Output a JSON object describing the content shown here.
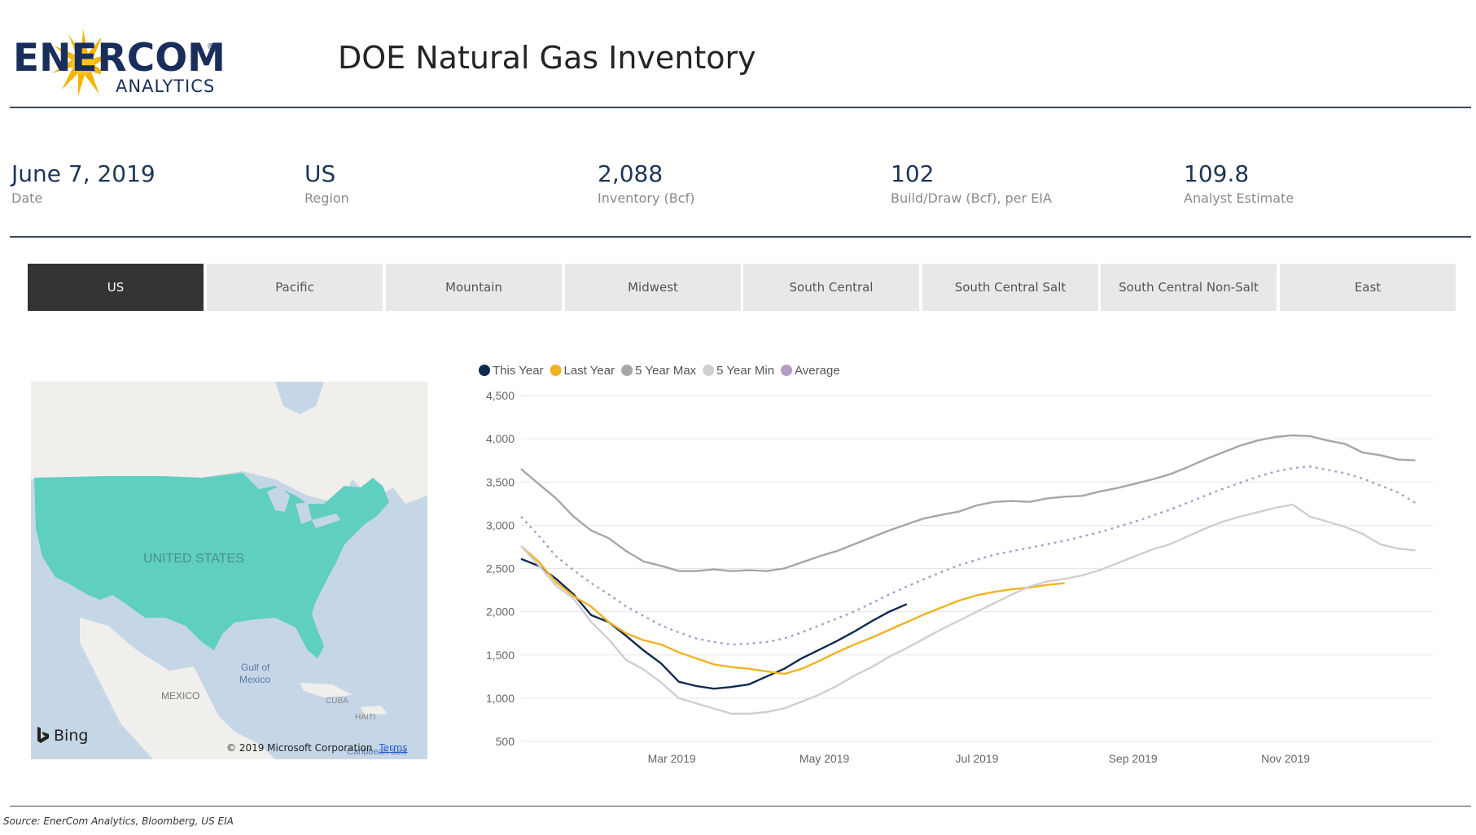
{
  "header": {
    "title": "DOE Natural Gas Inventory",
    "logo_brand": "ENERCOM",
    "logo_sub": "ANALYTICS",
    "logo_reg": "®"
  },
  "kpis": [
    {
      "value": "June 7, 2019",
      "label": "Date"
    },
    {
      "value": "US",
      "label": "Region"
    },
    {
      "value": "2,088",
      "label": "Inventory (Bcf)"
    },
    {
      "value": "102",
      "label": "Build/Draw (Bcf), per EIA"
    },
    {
      "value": "109.8",
      "label": "Analyst Estimate"
    }
  ],
  "tabs": [
    {
      "label": "US",
      "active": true
    },
    {
      "label": "Pacific"
    },
    {
      "label": "Mountain"
    },
    {
      "label": "Midwest"
    },
    {
      "label": "South Central"
    },
    {
      "label": "South Central Salt"
    },
    {
      "label": "South Central Non-Salt"
    },
    {
      "label": "East"
    }
  ],
  "map": {
    "country_label": "UNITED STATES",
    "gulf_label_1": "Gulf of",
    "gulf_label_2": "Mexico",
    "mexico_label": "MEXICO",
    "cuba_label": "CUBA",
    "haiti_label": "HAITI",
    "caribbean_label": "Caribbean Sea",
    "attribution": "Bing",
    "copyright": "© 2019 Microsoft Corporation",
    "terms": "Terms",
    "colors": {
      "highlight": "#5ecfc0",
      "water": "#c5d6e6",
      "land": "#f0efec"
    }
  },
  "chart_data": {
    "type": "line",
    "title": "",
    "xlabel": "",
    "ylabel": "",
    "ylim": [
      500,
      4500
    ],
    "yticks": [
      "4,500",
      "4,000",
      "3,500",
      "3,000",
      "2,500",
      "2,000",
      "1,500",
      "1,000",
      "500"
    ],
    "ytick_values": [
      4500,
      4000,
      3500,
      3000,
      2500,
      2000,
      1500,
      1000,
      500
    ],
    "x_range_weeks": [
      0,
      52
    ],
    "xtick_labels": [
      "Mar 2019",
      "May 2019",
      "Jul 2019",
      "Sep 2019",
      "Nov 2019"
    ],
    "xtick_weeks": [
      8.6,
      17.3,
      26,
      34.9,
      43.6
    ],
    "grid": true,
    "legend_position": "top-left",
    "series": [
      {
        "name": "This Year",
        "color": "#0f2a52",
        "dashed": false,
        "x": [
          0,
          1,
          2,
          3,
          4,
          5,
          6,
          7,
          8,
          9,
          10,
          11,
          12,
          13,
          14,
          15,
          16,
          17,
          18,
          19,
          20,
          21,
          22
        ],
        "values": [
          2610,
          2530,
          2380,
          2200,
          1960,
          1880,
          1720,
          1550,
          1400,
          1190,
          1140,
          1110,
          1130,
          1160,
          1250,
          1340,
          1460,
          1560,
          1660,
          1770,
          1890,
          2000,
          2088
        ]
      },
      {
        "name": "Last Year",
        "color": "#f0b323",
        "dashed": false,
        "x": [
          0,
          1,
          2,
          3,
          4,
          5,
          6,
          7,
          8,
          9,
          10,
          11,
          12,
          13,
          14,
          15,
          16,
          17,
          18,
          19,
          20,
          21,
          22,
          23,
          24,
          25,
          26,
          27,
          28,
          29,
          30,
          31
        ],
        "values": [
          2760,
          2580,
          2340,
          2180,
          2060,
          1880,
          1750,
          1670,
          1620,
          1530,
          1460,
          1390,
          1360,
          1340,
          1310,
          1280,
          1340,
          1430,
          1530,
          1620,
          1700,
          1790,
          1880,
          1970,
          2050,
          2130,
          2190,
          2230,
          2260,
          2280,
          2310,
          2330
        ]
      },
      {
        "name": "5 Year Max",
        "color": "#a6a6a6",
        "dashed": false,
        "x": [
          0,
          1,
          2,
          3,
          4,
          5,
          6,
          7,
          8,
          9,
          10,
          11,
          12,
          13,
          14,
          15,
          16,
          17,
          18,
          19,
          20,
          21,
          22,
          23,
          24,
          25,
          26,
          27,
          28,
          29,
          30,
          31,
          32,
          33,
          34,
          35,
          36,
          37,
          38,
          39,
          40,
          41,
          42,
          43,
          44,
          45,
          46,
          47,
          48,
          49,
          50,
          51
        ],
        "values": [
          3650,
          3480,
          3310,
          3100,
          2940,
          2850,
          2700,
          2580,
          2530,
          2470,
          2470,
          2490,
          2470,
          2480,
          2470,
          2500,
          2570,
          2640,
          2700,
          2780,
          2860,
          2940,
          3010,
          3080,
          3120,
          3160,
          3230,
          3270,
          3280,
          3270,
          3310,
          3330,
          3340,
          3390,
          3430,
          3480,
          3530,
          3590,
          3670,
          3760,
          3840,
          3920,
          3980,
          4020,
          4040,
          4030,
          3980,
          3940,
          3840,
          3810,
          3760,
          3750
        ]
      },
      {
        "name": "5 Year Min",
        "color": "#cfcfcf",
        "dashed": false,
        "x": [
          0,
          1,
          2,
          3,
          4,
          5,
          6,
          7,
          8,
          9,
          10,
          11,
          12,
          13,
          14,
          15,
          16,
          17,
          18,
          19,
          20,
          21,
          22,
          23,
          24,
          25,
          26,
          27,
          28,
          29,
          30,
          31,
          32,
          33,
          34,
          35,
          36,
          37,
          38,
          39,
          40,
          41,
          42,
          43,
          44,
          45,
          46,
          47,
          48,
          49,
          50,
          51
        ],
        "values": [
          2760,
          2540,
          2300,
          2150,
          1880,
          1680,
          1440,
          1330,
          1180,
          1000,
          940,
          880,
          820,
          820,
          840,
          880,
          960,
          1040,
          1140,
          1260,
          1360,
          1480,
          1580,
          1690,
          1800,
          1900,
          2000,
          2100,
          2200,
          2290,
          2350,
          2380,
          2420,
          2480,
          2560,
          2640,
          2720,
          2780,
          2870,
          2960,
          3040,
          3100,
          3150,
          3200,
          3240,
          3100,
          3040,
          2980,
          2900,
          2780,
          2730,
          2710
        ]
      },
      {
        "name": "Average",
        "color": "#b39bc8",
        "dashed": true,
        "x": [
          0,
          1,
          2,
          3,
          4,
          5,
          6,
          7,
          8,
          9,
          10,
          11,
          12,
          13,
          14,
          15,
          16,
          17,
          18,
          19,
          20,
          21,
          22,
          23,
          24,
          25,
          26,
          27,
          28,
          29,
          30,
          31,
          32,
          33,
          34,
          35,
          36,
          37,
          38,
          39,
          40,
          41,
          42,
          43,
          44,
          45,
          46,
          47,
          48,
          49,
          50,
          51
        ],
        "values": [
          3100,
          2880,
          2640,
          2480,
          2330,
          2200,
          2060,
          1950,
          1840,
          1760,
          1690,
          1650,
          1620,
          1630,
          1650,
          1690,
          1760,
          1840,
          1920,
          2000,
          2100,
          2200,
          2290,
          2380,
          2460,
          2540,
          2600,
          2660,
          2700,
          2740,
          2780,
          2820,
          2870,
          2920,
          2980,
          3040,
          3110,
          3180,
          3260,
          3340,
          3420,
          3490,
          3560,
          3620,
          3660,
          3680,
          3640,
          3600,
          3540,
          3460,
          3380,
          3260
        ]
      }
    ]
  },
  "footer": {
    "source": "Source: EnerCom Analytics, Bloomberg, US EIA"
  }
}
